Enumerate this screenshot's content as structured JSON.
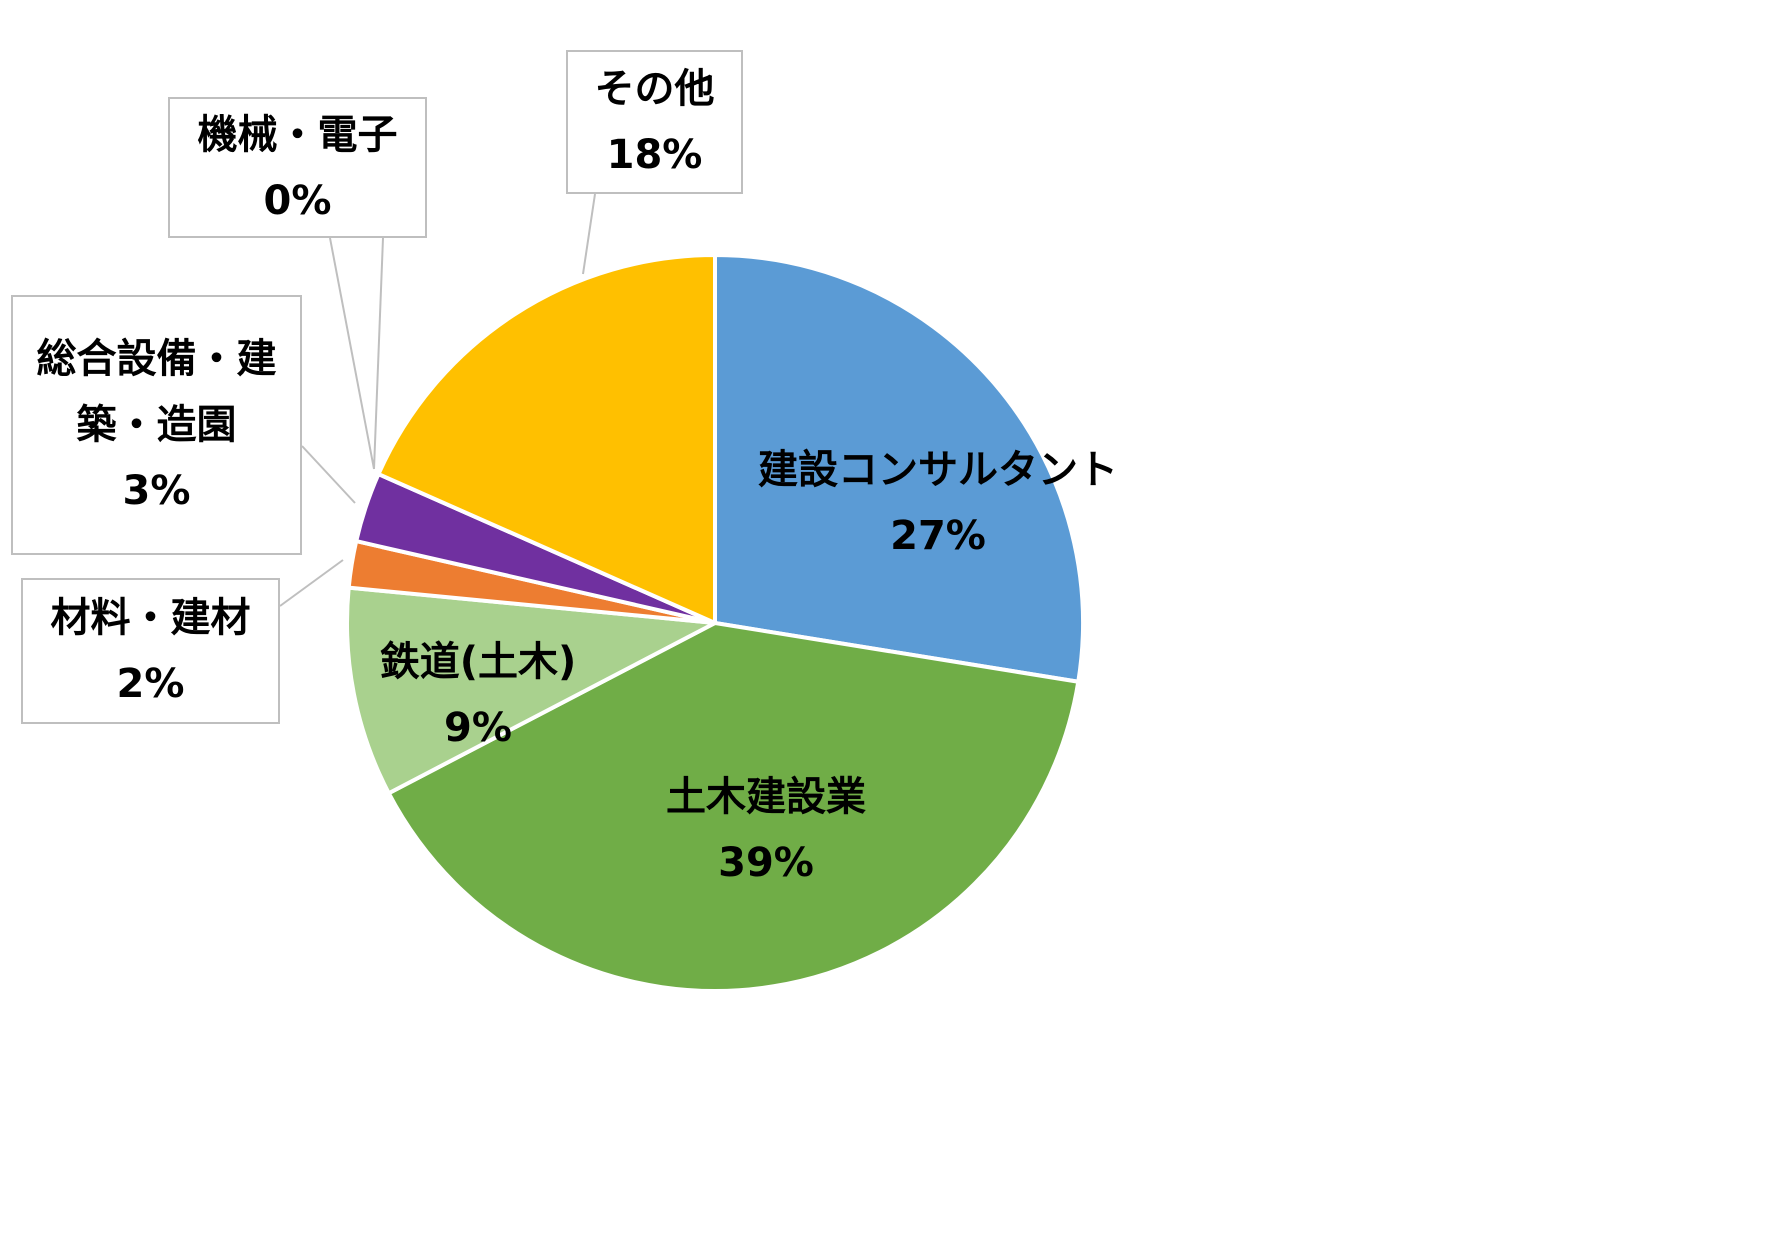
{
  "chart_data": {
    "type": "pie",
    "categories": [
      "建設コンサルタント",
      "土木建設業",
      "鉄道(土木)",
      "材料・建材",
      "総合設備・建築・造園",
      "機械・電子",
      "その他"
    ],
    "values": [
      27,
      39,
      9,
      2,
      3,
      0,
      18
    ],
    "value_labels": [
      "27%",
      "39%",
      "9%",
      "2%",
      "3%",
      "0%",
      "18%"
    ],
    "colors": [
      "#5b9bd5",
      "#70ad47",
      "#a9d18e",
      "#ed7d31",
      "#7030a0",
      "#264478",
      "#ffc000"
    ]
  }
}
